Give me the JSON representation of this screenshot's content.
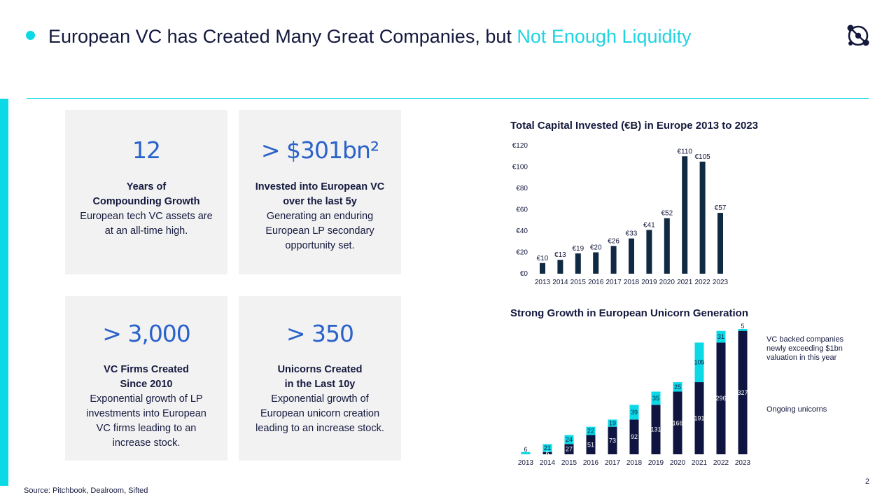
{
  "header": {
    "title_main": "European VC has Created Many Great Companies, but ",
    "title_accent": "Not Enough Liquidity",
    "logo_icon": "network-logo-icon"
  },
  "colors": {
    "accent": "#0bd9e6",
    "navy": "#14193d",
    "bar_navy": "#102a43",
    "stat_blue": "#2a62c9",
    "card_bg": "#f2f2f3"
  },
  "cards": [
    {
      "big": "12",
      "head1": "Years of",
      "head2": "Compounding Growth",
      "body1": "European tech VC assets are",
      "body2": "at an all-time high.",
      "body3": "",
      "body4": ""
    },
    {
      "big": "> $301bn²",
      "head1": "Invested into European VC",
      "head2": "over the last 5y",
      "body1": "Generating an enduring",
      "body2": "European LP secondary",
      "body3": "opportunity set.",
      "body4": ""
    },
    {
      "big": "> 3,000",
      "head1": "VC Firms Created",
      "head2": "Since 2010",
      "body1": "Exponential growth of LP",
      "body2": "investments into European",
      "body3": "VC firms leading to an",
      "body4": "increase stock."
    },
    {
      "big": "> 350",
      "head1": "Unicorns Created",
      "head2": "in the Last 10y",
      "body1": "Exponential growth of",
      "body2": "European unicorn creation",
      "body3": "leading to an increase stock.",
      "body4": ""
    }
  ],
  "chart_data": [
    {
      "type": "bar",
      "title": "Total Capital Invested (€B) in Europe 2013 to 2023",
      "categories": [
        "2013",
        "2014",
        "2015",
        "2016",
        "2017",
        "2018",
        "2019",
        "2020",
        "2021",
        "2022",
        "2023"
      ],
      "values": [
        10,
        13,
        19,
        20,
        26,
        33,
        41,
        52,
        110,
        105,
        57
      ],
      "data_labels": [
        "€10",
        "€13",
        "€19",
        "€20",
        "€26",
        "€33",
        "€41",
        "€52",
        "€110",
        "€105",
        "€57"
      ],
      "yticks": [
        "€0",
        "€20",
        "€40",
        "€60",
        "€80",
        "€100",
        "€120"
      ],
      "ylim": [
        0,
        120
      ],
      "grid": false,
      "legend": "none"
    },
    {
      "type": "bar",
      "stacked": true,
      "title": "Strong Growth in European Unicorn Generation",
      "categories": [
        "2013",
        "2014",
        "2015",
        "2016",
        "2017",
        "2018",
        "2019",
        "2020",
        "2021",
        "2022",
        "2023"
      ],
      "series": [
        {
          "name": "Ongoing unicorns",
          "values": [
            0,
            6,
            27,
            51,
            73,
            92,
            131,
            166,
            191,
            296,
            327
          ],
          "labels": [
            "",
            "6",
            "27",
            "51",
            "73",
            "92",
            "131",
            "166",
            "191",
            "296",
            "327"
          ]
        },
        {
          "name": "VC backed companies newly exceeding $1bn valuation in this year",
          "values": [
            6,
            21,
            24,
            22,
            19,
            39,
            35,
            25,
            105,
            31,
            5
          ],
          "labels": [
            "6",
            "21",
            "24",
            "22",
            "19",
            "39",
            "35",
            "25",
            "105",
            "31",
            "5"
          ]
        }
      ],
      "legend_lines": {
        "new_1": "VC backed companies",
        "new_2": "newly exceeding $1bn",
        "new_3": "valuation in this year",
        "ongoing": "Ongoing unicorns"
      },
      "legend": "right",
      "grid": false
    }
  ],
  "footer": {
    "source": "Source: Pitchbook, Dealroom, Sifted",
    "page": "2"
  }
}
